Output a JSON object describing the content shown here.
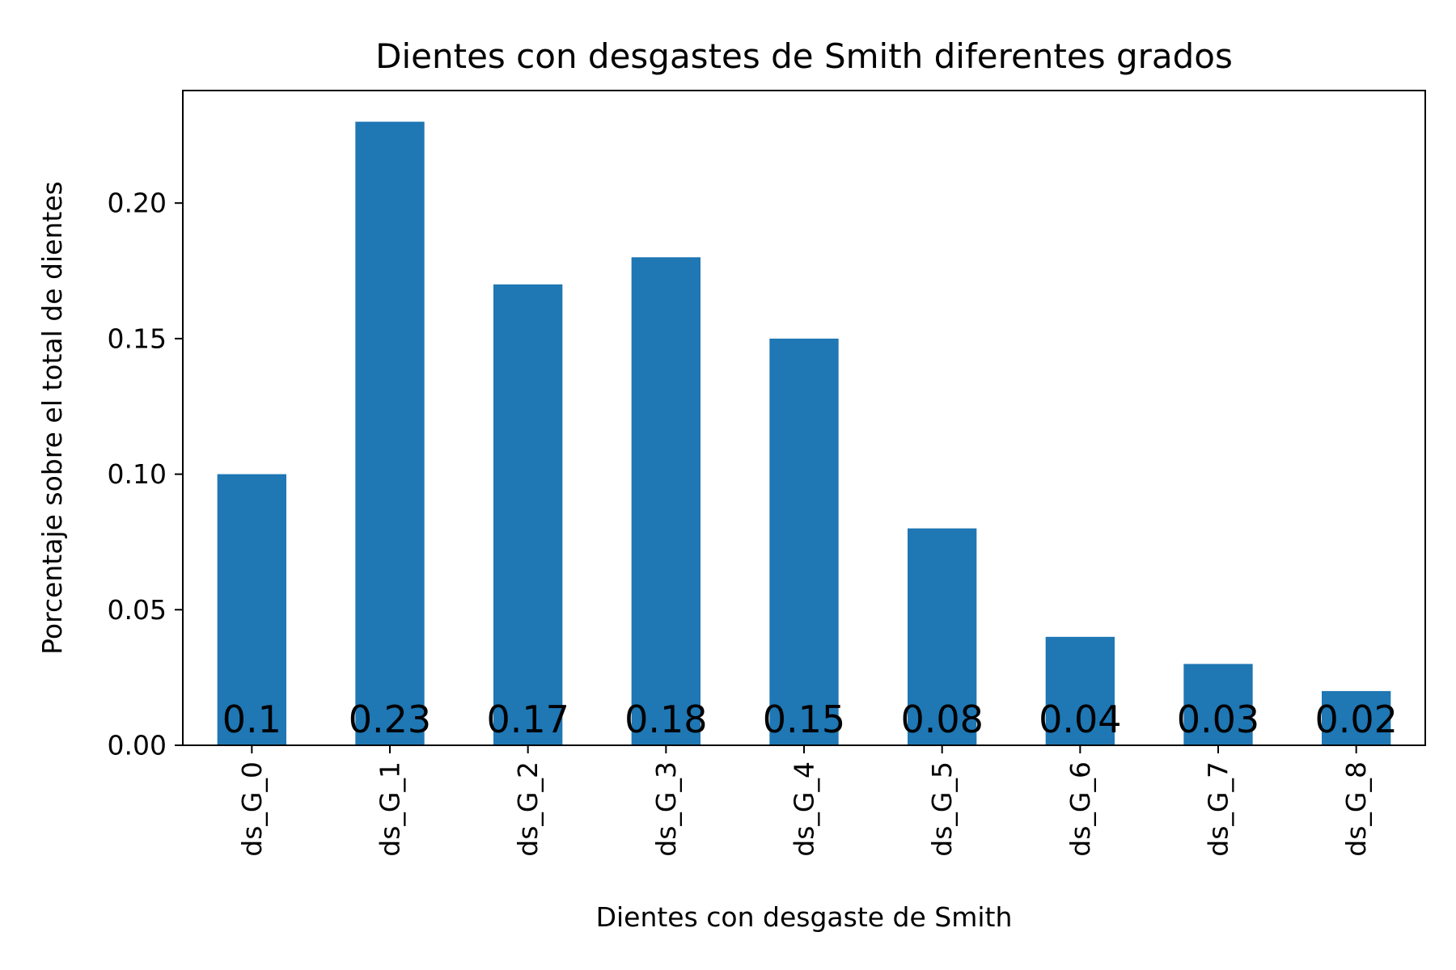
{
  "chart_data": {
    "type": "bar",
    "title": "Dientes con desgastes de Smith diferentes grados",
    "xlabel": "Dientes con desgaste de Smith",
    "ylabel": "Porcentaje sobre el total de dientes",
    "categories": [
      "ds_G_0",
      "ds_G_1",
      "ds_G_2",
      "ds_G_3",
      "ds_G_4",
      "ds_G_5",
      "ds_G_6",
      "ds_G_7",
      "ds_G_8"
    ],
    "values": [
      0.1,
      0.23,
      0.17,
      0.18,
      0.15,
      0.08,
      0.04,
      0.03,
      0.02
    ],
    "data_labels": [
      "0.1",
      "0.23",
      "0.17",
      "0.18",
      "0.15",
      "0.08",
      "0.04",
      "0.03",
      "0.02"
    ],
    "ylim": [
      0,
      0.2415
    ],
    "yticks": [
      0.0,
      0.05,
      0.1,
      0.15,
      0.2
    ],
    "ytick_labels": [
      "0.00",
      "0.05",
      "0.10",
      "0.15",
      "0.20"
    ],
    "grid": false,
    "colors": {
      "bar": "#1f77b4",
      "axis": "#000000"
    }
  }
}
